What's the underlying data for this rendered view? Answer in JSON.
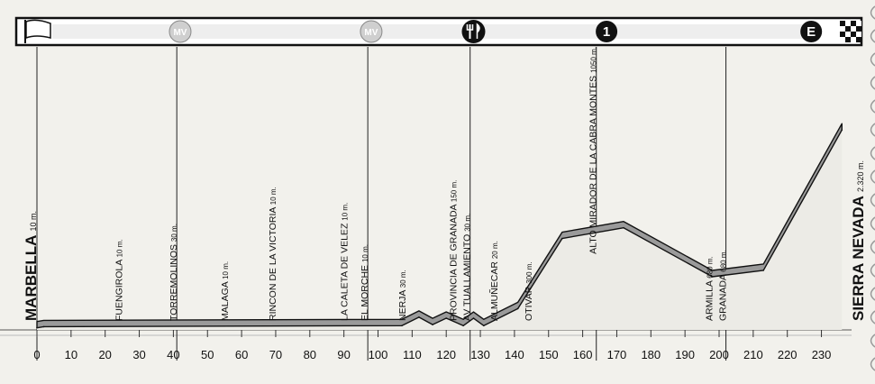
{
  "chart_data": {
    "type": "area",
    "title": "",
    "xlabel": "",
    "ylabel": "",
    "xlim": [
      0,
      236
    ],
    "x_ticks": [
      "0",
      "10",
      "20",
      "30",
      "40",
      "50",
      "60",
      "70",
      "80",
      "90",
      "100",
      "110",
      "120",
      "130",
      "140",
      "150",
      "160",
      "170",
      "180",
      "190",
      "200",
      "210",
      "220",
      "230"
    ],
    "profile": [
      {
        "x": 0,
        "y": 10
      },
      {
        "x": 2,
        "y": 15
      },
      {
        "x": 107,
        "y": 20
      },
      {
        "x": 112,
        "y": 60
      },
      {
        "x": 116,
        "y": 25
      },
      {
        "x": 120,
        "y": 55
      },
      {
        "x": 125,
        "y": 20
      },
      {
        "x": 128,
        "y": 55
      },
      {
        "x": 131,
        "y": 20
      },
      {
        "x": 141,
        "y": 100
      },
      {
        "x": 154,
        "y": 430
      },
      {
        "x": 172,
        "y": 480
      },
      {
        "x": 198,
        "y": 250
      },
      {
        "x": 213,
        "y": 280
      },
      {
        "x": 236,
        "y": 940
      }
    ],
    "header_markers": [
      {
        "x": 0,
        "icon": "start-flag-icon"
      },
      {
        "x": 42,
        "icon": "mv-icon",
        "label": "MV"
      },
      {
        "x": 98,
        "icon": "mv-icon",
        "label": "MV"
      },
      {
        "x": 128,
        "icon": "food-icon"
      },
      {
        "x": 167,
        "icon": "climb-icon",
        "label": "1"
      },
      {
        "x": 227,
        "icon": "finish-e-icon",
        "label": "E"
      },
      {
        "x": 236,
        "icon": "finish-flag-icon"
      }
    ],
    "locations": [
      {
        "x": 0,
        "name": "MARBELLA",
        "alt": "10 m.",
        "main": true,
        "vline": true
      },
      {
        "x": 25,
        "name": "FUENGIROLA",
        "alt": "10 m."
      },
      {
        "x": 41,
        "name": "TORREMOLINOS",
        "alt": "30 m.",
        "vline": true
      },
      {
        "x": 56,
        "name": "MALAGA",
        "alt": "10 m."
      },
      {
        "x": 70,
        "name": "RINCON DE LA VICTORIA",
        "alt": "10 m."
      },
      {
        "x": 91,
        "name": "LA CALETA DE VELEZ",
        "alt": "10 m."
      },
      {
        "x": 97,
        "name": "EL MORCHE",
        "alt": "10 m.",
        "vline": true
      },
      {
        "x": 108,
        "name": "NERJA",
        "alt": "30 m."
      },
      {
        "x": 123,
        "name": "PROVINCIA DE GRANADA",
        "alt": "150 m."
      },
      {
        "x": 127,
        "name": "AV TUALLAMIENTO",
        "alt": "30 m.",
        "vline": true
      },
      {
        "x": 135,
        "name": "ALMUÑECAR",
        "alt": "20 m."
      },
      {
        "x": 145,
        "name": "OTIVAR",
        "alt": "300 m."
      },
      {
        "x": 164,
        "name": "ALTO MIRADOR DE LA CABRA MONTES",
        "alt": "1050 m.",
        "vline": true
      },
      {
        "x": 198,
        "name": "ARMILLA",
        "alt": "680 m."
      },
      {
        "x": 202,
        "name": "GRANADA",
        "alt": "680 m.",
        "vline": true
      },
      {
        "x": 236,
        "name": "SIERRA NEVADA",
        "alt": "2.320 m.",
        "main": true
      }
    ]
  }
}
